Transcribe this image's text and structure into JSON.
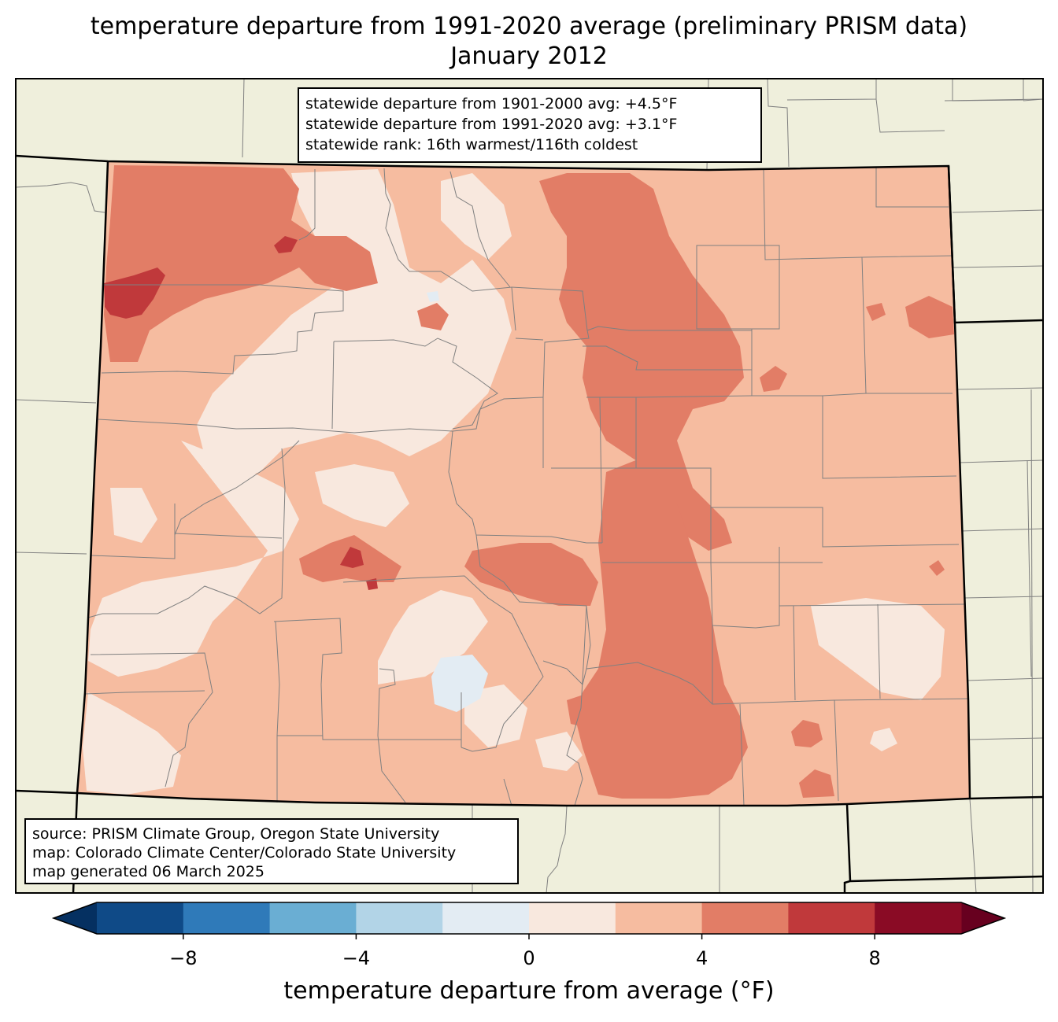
{
  "title": {
    "line1": "temperature departure from 1991-2020 average (preliminary PRISM data)",
    "line2": "January 2012"
  },
  "stats": {
    "line1": "statewide departure from 1901-2000 avg: +4.5°F",
    "line2": "statewide departure from 1991-2020 avg: +3.1°F",
    "line3": "statewide rank: 16th warmest/116th coldest"
  },
  "source": {
    "line1": "source: PRISM Climate Group, Oregon State University",
    "line2": "map: Colorado Climate Center/Colorado State University",
    "line3": "map generated 06 March 2025"
  },
  "colorbar": {
    "label": "temperature departure from average (°F)",
    "bins": [
      {
        "from": -10,
        "to": -8,
        "color": "#0f4a87"
      },
      {
        "from": -8,
        "to": -6,
        "color": "#2f7ab9"
      },
      {
        "from": -6,
        "to": -4,
        "color": "#6aaed3"
      },
      {
        "from": -4,
        "to": -2,
        "color": "#b2d4e7"
      },
      {
        "from": -2,
        "to": 0,
        "color": "#e3ecf3"
      },
      {
        "from": 0,
        "to": 2,
        "color": "#f8e8de"
      },
      {
        "from": 2,
        "to": 4,
        "color": "#f6bca0"
      },
      {
        "from": 4,
        "to": 6,
        "color": "#e27d66"
      },
      {
        "from": 6,
        "to": 8,
        "color": "#c0393b"
      },
      {
        "from": 8,
        "to": 10,
        "color": "#8a0b25"
      }
    ],
    "under_color": "#053061",
    "over_color": "#67001f",
    "ticks": [
      {
        "value": -8,
        "label": "−8"
      },
      {
        "value": -4,
        "label": "−4"
      },
      {
        "value": 0,
        "label": "0"
      },
      {
        "value": 4,
        "label": "4"
      },
      {
        "value": 8,
        "label": "8"
      }
    ]
  },
  "colors": {
    "land": "#efefdc",
    "county_line": "#808080",
    "state_line": "#000000",
    "base_fill": "#f6bca0"
  }
}
